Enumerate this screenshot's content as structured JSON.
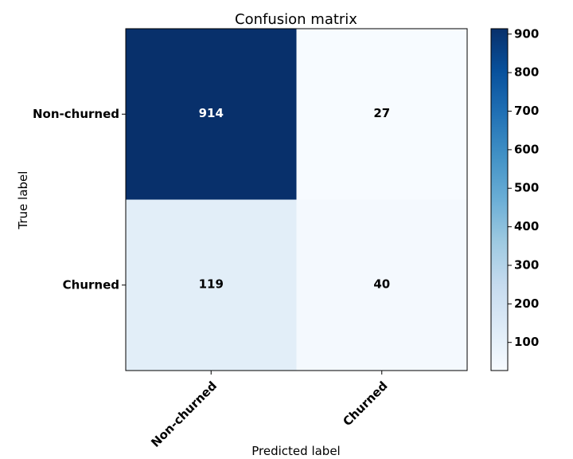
{
  "chart_data": {
    "type": "heatmap",
    "title": "Confusion matrix",
    "xlabel": "Predicted label",
    "ylabel": "True label",
    "x_categories": [
      "Non-churned",
      "Churned"
    ],
    "y_categories": [
      "Non-churned",
      "Churned"
    ],
    "matrix": [
      [
        914,
        27
      ],
      [
        119,
        40
      ]
    ],
    "colormap": "Blues",
    "colorbar": {
      "range": [
        27,
        914
      ],
      "ticks": [
        100,
        200,
        300,
        400,
        500,
        600,
        700,
        800,
        900
      ]
    },
    "grid": false
  }
}
